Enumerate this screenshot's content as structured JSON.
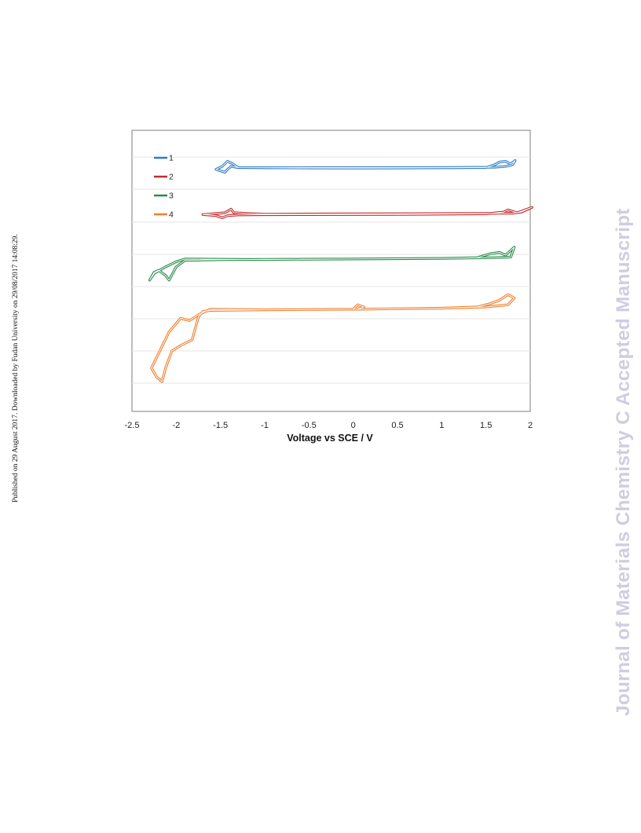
{
  "side_note": "Published on 29 August 2017. Downloaded by Fudan University on 29/08/2017 14:08:29.",
  "watermark": "Journal of Materials Chemistry C Accepted Manuscript",
  "chart_data": {
    "type": "line",
    "title": "",
    "xlabel": "Voltage vs SCE / V",
    "ylabel": "",
    "xlim": [
      -2.5,
      2.0
    ],
    "xticks": [
      "-2.5",
      "-2",
      "-1.5",
      "-1",
      "-0.5",
      "0",
      "0.5",
      "1",
      "1.5",
      "2"
    ],
    "grid": true,
    "legend_position": "top-left",
    "series": [
      {
        "name": "1",
        "color": "#2e7cc4",
        "x": [
          -1.55,
          -1.45,
          -1.42,
          -1.38,
          -1.3,
          -1.0,
          -0.5,
          0,
          0.5,
          1.0,
          1.5,
          1.6,
          1.65,
          1.72,
          1.78,
          1.83,
          1.8,
          1.72,
          1.6,
          1.0,
          0,
          -1.0,
          -1.3,
          -1.36,
          -1.42,
          -1.48,
          -1.55
        ],
        "y": [
          0.45,
          0.38,
          0.45,
          0.52,
          0.49,
          0.485,
          0.482,
          0.48,
          0.482,
          0.485,
          0.49,
          0.56,
          0.62,
          0.64,
          0.58,
          0.66,
          0.56,
          0.52,
          0.5,
          0.492,
          0.49,
          0.488,
          0.49,
          0.58,
          0.64,
          0.52,
          0.45
        ]
      },
      {
        "name": "2",
        "color": "#c12a2a",
        "x": [
          -1.7,
          -1.55,
          -1.48,
          -1.42,
          -1.3,
          -1.0,
          -0.5,
          0,
          0.5,
          1.0,
          1.5,
          1.7,
          1.75,
          1.85,
          2.02,
          1.9,
          1.8,
          1.5,
          0,
          -1.0,
          -1.35,
          -1.38,
          -1.45,
          -1.7
        ],
        "y": [
          0.45,
          0.42,
          0.36,
          0.42,
          0.44,
          0.445,
          0.448,
          0.45,
          0.455,
          0.46,
          0.47,
          0.52,
          0.58,
          0.5,
          0.65,
          0.52,
          0.49,
          0.48,
          0.47,
          0.46,
          0.5,
          0.6,
          0.5,
          0.45
        ]
      },
      {
        "name": "3",
        "color": "#2a8a4a",
        "x": [
          -2.3,
          -2.25,
          -2.2,
          -2.12,
          -2.08,
          -2.0,
          -1.9,
          -1.5,
          -1.0,
          0,
          0.5,
          1.0,
          1.4,
          1.55,
          1.65,
          1.72,
          1.82,
          1.78,
          1.6,
          1.0,
          0,
          -1.0,
          -1.9,
          -2.0,
          -2.15,
          -2.25,
          -2.3
        ],
        "y": [
          0.3,
          0.42,
          0.45,
          0.37,
          0.3,
          0.5,
          0.6,
          0.61,
          0.615,
          0.62,
          0.625,
          0.63,
          0.64,
          0.7,
          0.72,
          0.68,
          0.8,
          0.65,
          0.64,
          0.63,
          0.62,
          0.612,
          0.62,
          0.58,
          0.48,
          0.4,
          0.3
        ]
      },
      {
        "name": "4",
        "color": "#ee7f2e",
        "x": [
          -2.28,
          -2.22,
          -2.16,
          -2.12,
          -2.05,
          -1.95,
          -1.82,
          -1.75,
          -1.7,
          -1.6,
          -1.0,
          0,
          0.05,
          0.12,
          0.05,
          0.5,
          1.0,
          1.4,
          1.55,
          1.65,
          1.75,
          1.82,
          1.75,
          1.5,
          1.0,
          0,
          -1.0,
          -1.62,
          -1.75,
          -1.85,
          -1.95,
          -2.08,
          -2.28
        ],
        "y": [
          0.3,
          0.22,
          0.18,
          0.3,
          0.45,
          0.5,
          0.55,
          0.75,
          0.8,
          0.81,
          0.815,
          0.82,
          0.86,
          0.84,
          0.82,
          0.825,
          0.83,
          0.84,
          0.87,
          0.9,
          0.95,
          0.92,
          0.86,
          0.84,
          0.83,
          0.82,
          0.815,
          0.82,
          0.77,
          0.72,
          0.74,
          0.62,
          0.3
        ]
      }
    ],
    "panels": [
      {
        "series": "1",
        "ymin": 0.0,
        "ymax": 1.0
      },
      {
        "series": "2",
        "ymin": 0.0,
        "ymax": 1.0
      },
      {
        "series": "3",
        "ymin": 0.0,
        "ymax": 1.0
      },
      {
        "series": "4",
        "ymin": 0.0,
        "ymax": 1.0
      }
    ]
  }
}
